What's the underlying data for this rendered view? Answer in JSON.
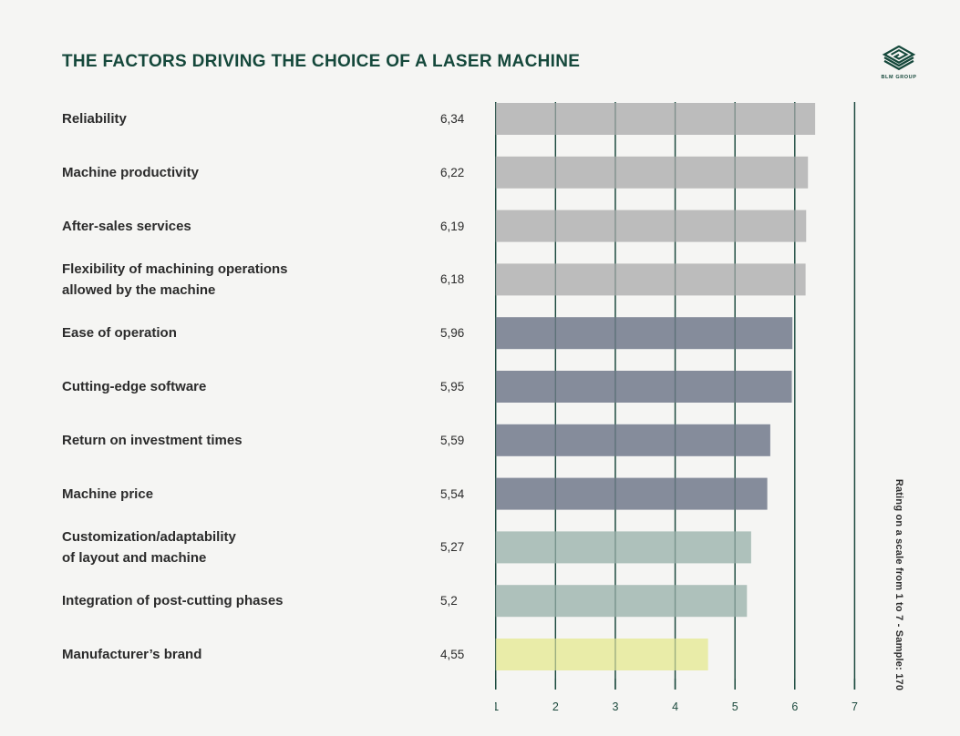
{
  "header": {
    "title": "THE FACTORS DRIVING THE CHOICE OF A LASER MACHINE",
    "logo_text": "BLM GROUP"
  },
  "side_note": "Rating on a scale from 1 to 7 - Sample: 170",
  "colors": {
    "background": "#f5f5f3",
    "title": "#15483b",
    "grid": "#1c4a3e",
    "label_text": "#2b2b2b",
    "tick_text": "#1c4a3e",
    "bar_gray": "#bcbcbc",
    "bar_slate": "#858c9b",
    "bar_sage": "#aec1bb",
    "bar_yellow": "#e9eca8"
  },
  "chart_data": {
    "type": "bar",
    "orientation": "horizontal",
    "title": "THE FACTORS DRIVING THE CHOICE OF A LASER MACHINE",
    "categories": [
      "Reliability",
      "Machine productivity",
      "After-sales services",
      "Flexibility of machining operations\nallowed by the machine",
      "Ease of operation",
      "Cutting-edge software",
      "Return on investment times",
      "Machine price",
      "Customization/adaptability\nof layout and machine",
      "Integration of post-cutting phases",
      "Manufacturer’s brand"
    ],
    "values": [
      6.34,
      6.22,
      6.19,
      6.18,
      5.96,
      5.95,
      5.59,
      5.54,
      5.27,
      5.2,
      4.55
    ],
    "value_labels": [
      "6,34",
      "6,22",
      "6,19",
      "6,18",
      "5,96",
      "5,95",
      "5,59",
      "5,54",
      "5,27",
      "5,2",
      "4,55"
    ],
    "bar_colors": [
      "#bcbcbc",
      "#bcbcbc",
      "#bcbcbc",
      "#bcbcbc",
      "#858c9b",
      "#858c9b",
      "#858c9b",
      "#858c9b",
      "#aec1bb",
      "#aec1bb",
      "#e9eca8"
    ],
    "xlim": [
      1,
      7
    ],
    "x_ticks": [
      "1",
      "2",
      "3",
      "4",
      "5",
      "6",
      "7"
    ],
    "xlabel": "",
    "ylabel": "",
    "grid": "vertical",
    "legend": "none",
    "note": "Rating on a scale from 1 to 7 - Sample: 170"
  }
}
